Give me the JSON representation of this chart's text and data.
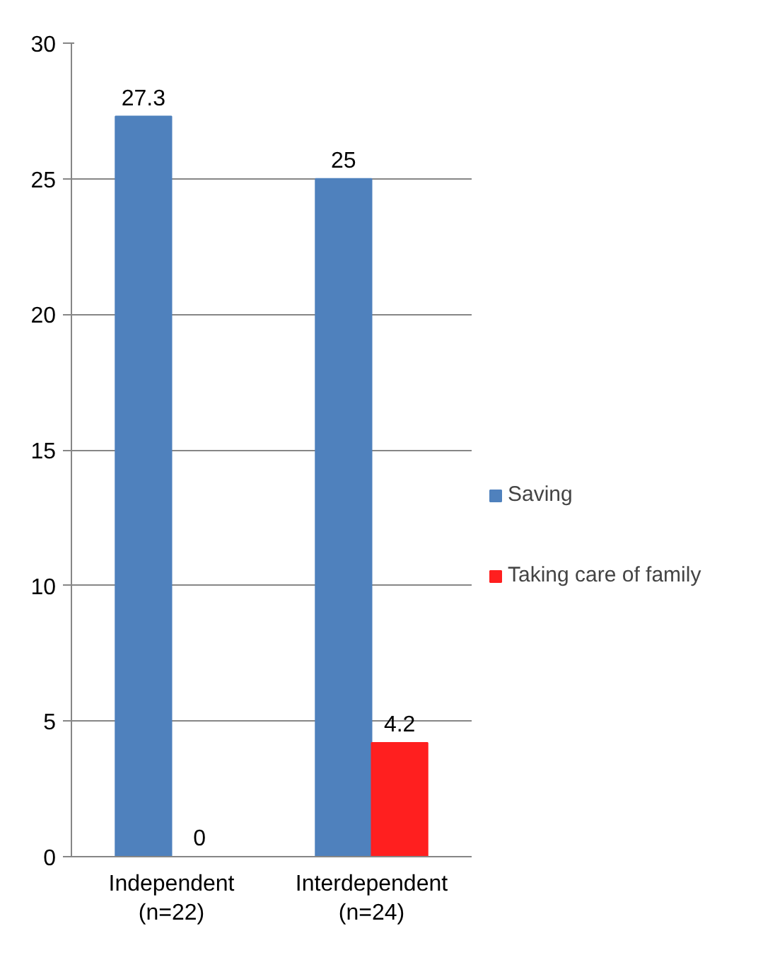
{
  "chart_data": {
    "type": "bar",
    "categories": [
      "Independent\n(n=22)",
      "Interdependent\n(n=24)"
    ],
    "series": [
      {
        "name": "Saving",
        "color": "#4f81bd",
        "values": [
          27.3,
          25
        ]
      },
      {
        "name": "Taking care of family",
        "color": "#ff1f1f",
        "values": [
          0,
          4.2
        ]
      }
    ],
    "ylim": [
      0,
      30
    ],
    "yticks": [
      0,
      5,
      10,
      15,
      20,
      25,
      30
    ],
    "grid": "y",
    "legend": "right",
    "data_labels": true
  }
}
